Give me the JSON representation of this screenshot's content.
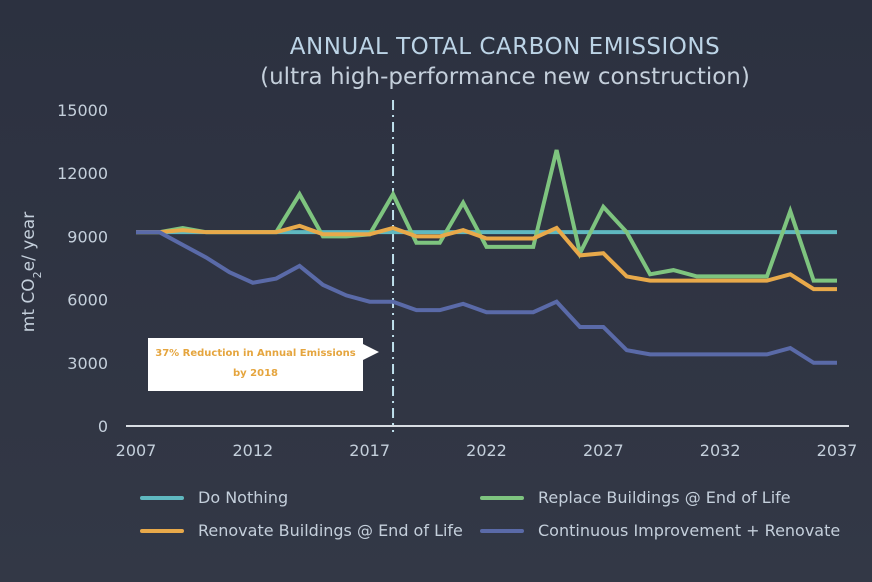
{
  "chart_data": {
    "type": "line",
    "title": "ANNUAL TOTAL CARBON EMISSIONS",
    "subtitle": "(ultra high-performance new construction)",
    "ylabel": "mt CO2e/ year",
    "xlabel": "",
    "xlim": [
      2007,
      2037
    ],
    "ylim": [
      0,
      15000
    ],
    "xticks": [
      "2007",
      "2012",
      "2017",
      "2022",
      "2027",
      "2032",
      "2037"
    ],
    "yticks": [
      "0",
      "3000",
      "6000",
      "9000",
      "12000",
      "15000"
    ],
    "x": [
      2007,
      2008,
      2009,
      2010,
      2011,
      2012,
      2013,
      2014,
      2015,
      2016,
      2017,
      2018,
      2019,
      2020,
      2021,
      2022,
      2023,
      2024,
      2025,
      2026,
      2027,
      2028,
      2029,
      2030,
      2031,
      2032,
      2033,
      2034,
      2035,
      2036,
      2037
    ],
    "series": [
      {
        "name": "Do Nothing",
        "color": "#5fb8c0",
        "values": [
          9200,
          9200,
          9200,
          9200,
          9200,
          9200,
          9200,
          9200,
          9200,
          9200,
          9200,
          9200,
          9200,
          9200,
          9200,
          9200,
          9200,
          9200,
          9200,
          9200,
          9200,
          9200,
          9200,
          9200,
          9200,
          9200,
          9200,
          9200,
          9200,
          9200,
          9200
        ]
      },
      {
        "name": "Replace Buildings @ End of Life",
        "color": "#7ec47f",
        "values": [
          9200,
          9200,
          9400,
          9200,
          9200,
          9200,
          9200,
          11000,
          9000,
          9000,
          9100,
          11000,
          8700,
          8700,
          10600,
          8500,
          8500,
          8500,
          13100,
          8200,
          10400,
          9200,
          7200,
          7400,
          7100,
          7100,
          7100,
          7100,
          10200,
          6900,
          6900
        ]
      },
      {
        "name": "Renovate Buildings @ End of Life",
        "color": "#e8a94a",
        "values": [
          9200,
          9200,
          9300,
          9200,
          9200,
          9200,
          9200,
          9500,
          9100,
          9100,
          9100,
          9400,
          9000,
          9000,
          9300,
          8900,
          8900,
          8900,
          9400,
          8100,
          8200,
          7100,
          6900,
          6900,
          6900,
          6900,
          6900,
          6900,
          7200,
          6500,
          6500
        ]
      },
      {
        "name": "Continuous Improvement + Renovate",
        "color": "#5a6aa8",
        "values": [
          9200,
          9200,
          8600,
          8000,
          7300,
          6800,
          7000,
          7600,
          6700,
          6200,
          5900,
          5900,
          5500,
          5500,
          5800,
          5400,
          5400,
          5400,
          5900,
          4700,
          4700,
          3600,
          3400,
          3400,
          3400,
          3400,
          3400,
          3400,
          3700,
          3000,
          3000
        ]
      }
    ],
    "annotation": {
      "x": 2018,
      "line_1": "37% Reduction in Annual Emissions",
      "line_2": "by 2018"
    },
    "legend_placement": "bottom",
    "grid": false
  }
}
